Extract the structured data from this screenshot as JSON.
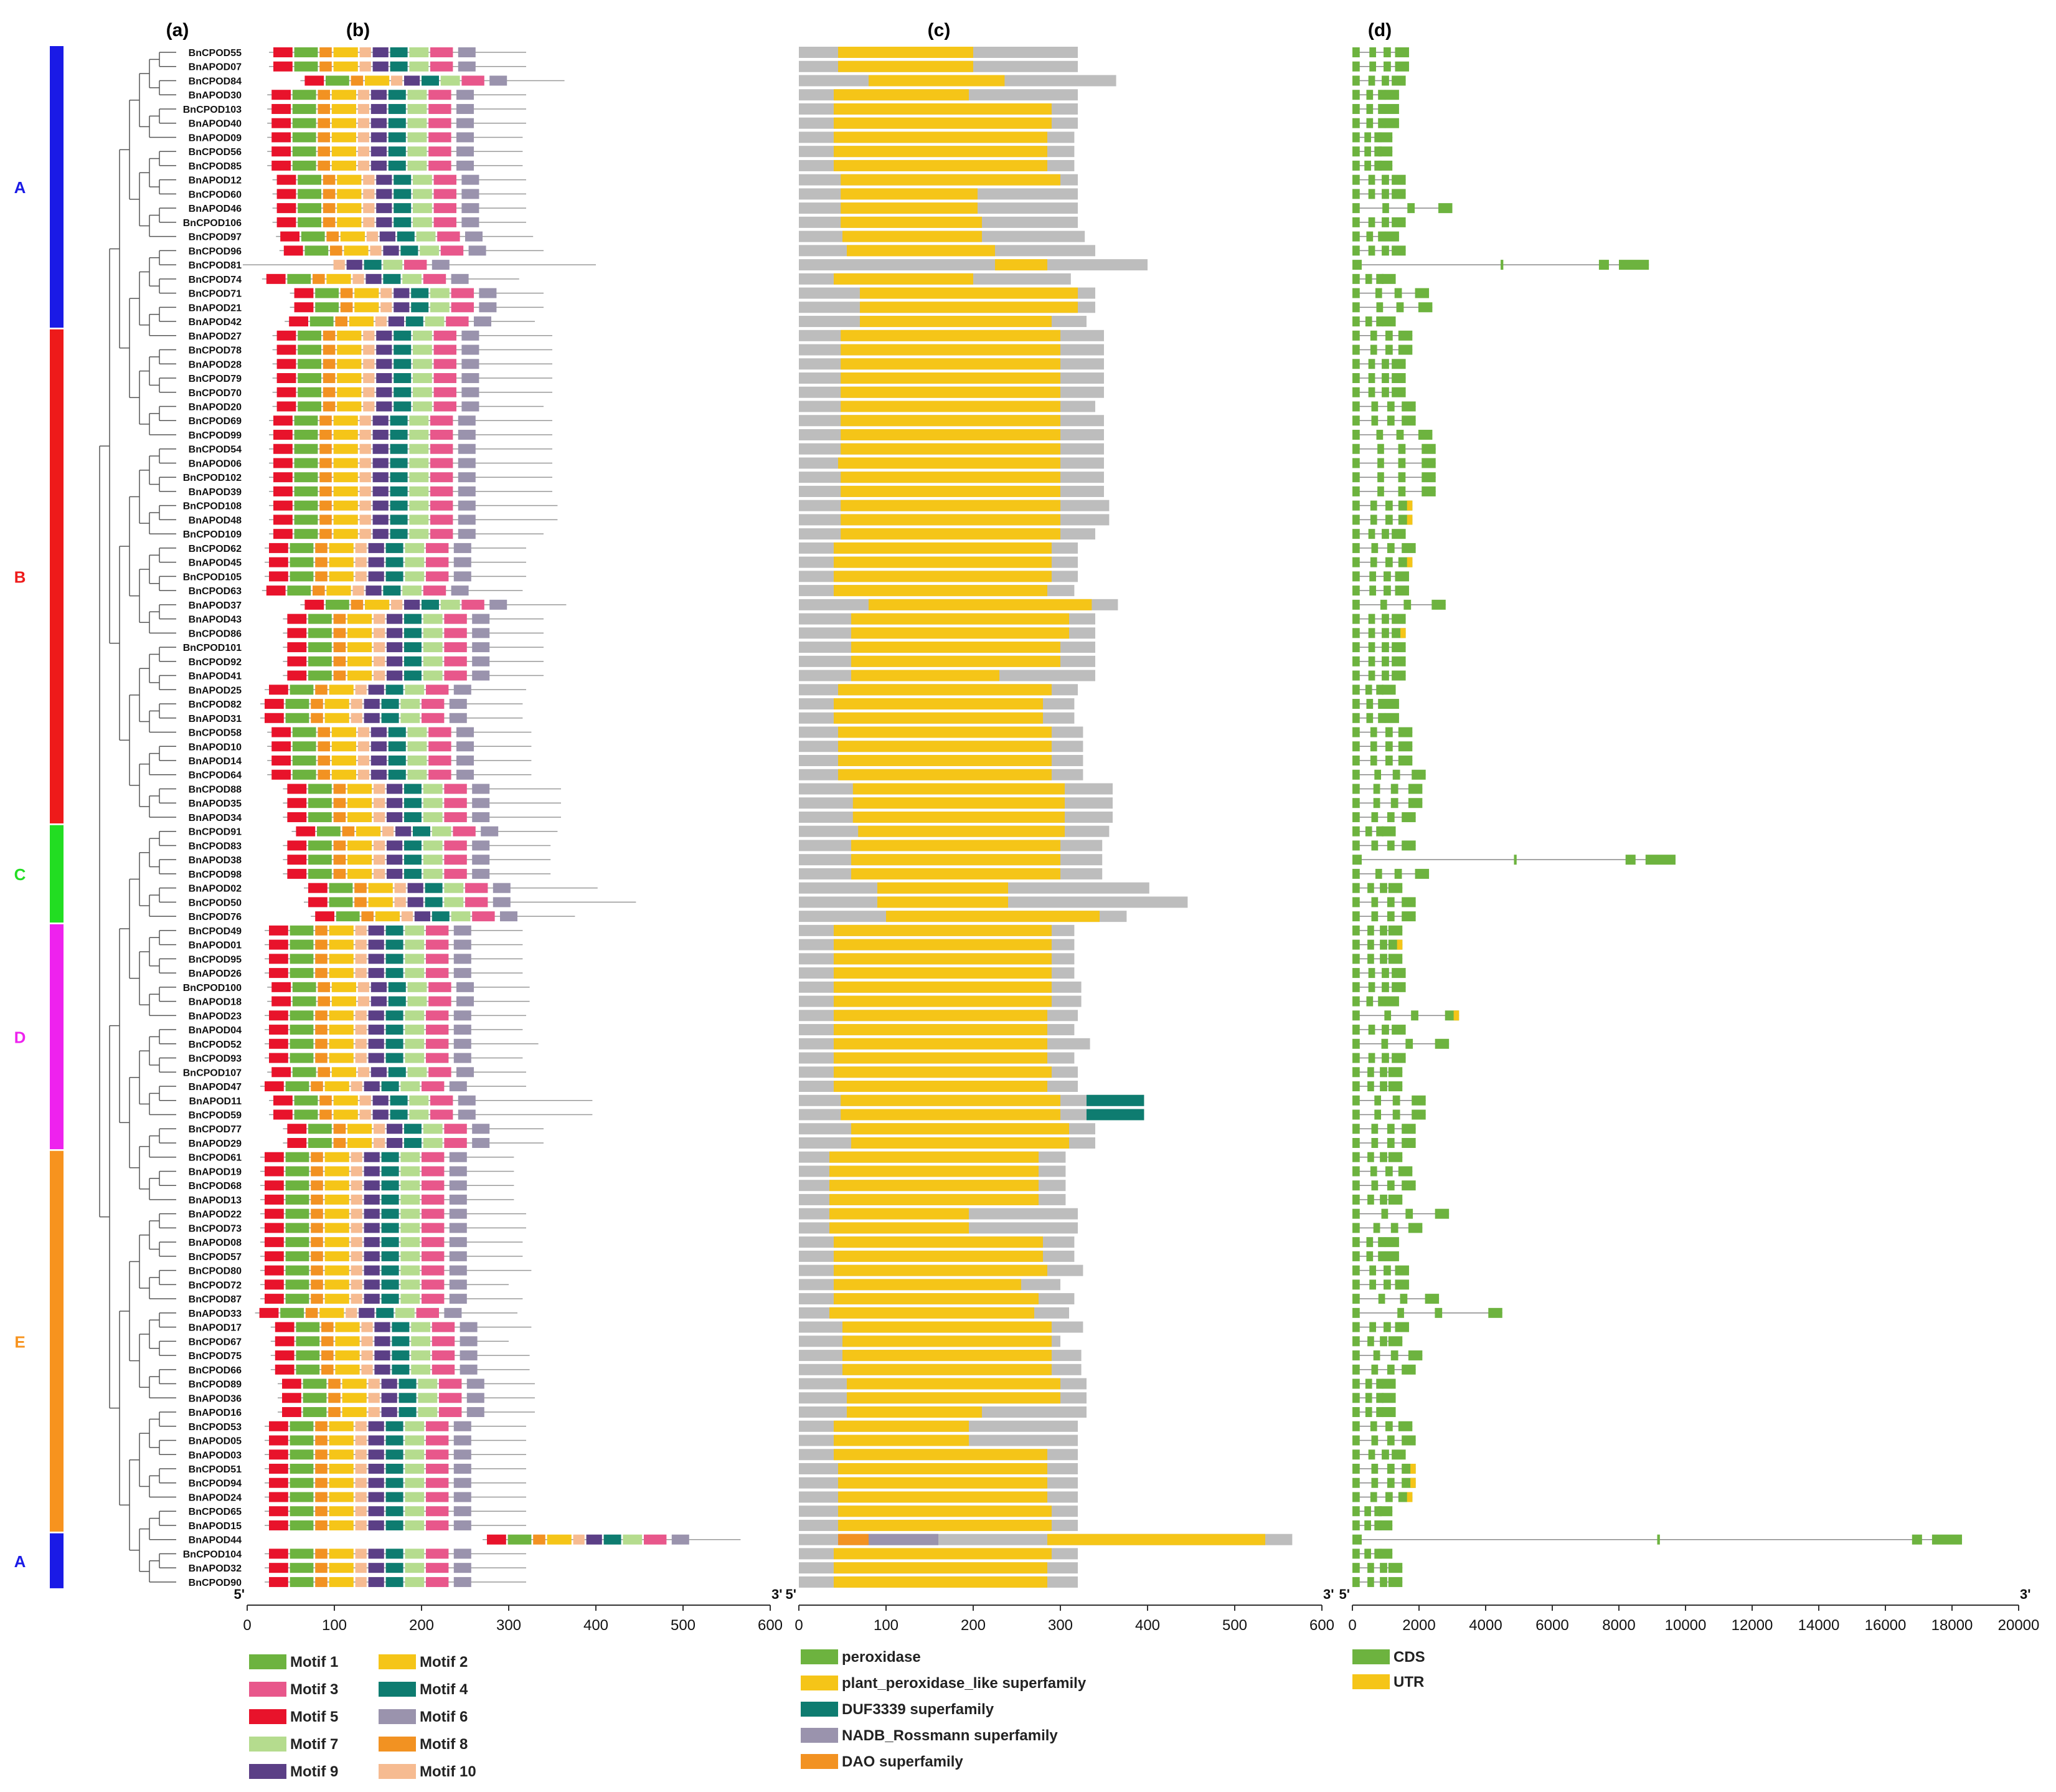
{
  "panels": [
    "(a)",
    "(b)",
    "(c)",
    "(d)"
  ],
  "genes": [
    "BnCPOD55",
    "BnAPOD07",
    "BnCPOD84",
    "BnAPOD30",
    "BnCPOD103",
    "BnAPOD40",
    "BnAPOD09",
    "BnCPOD56",
    "BnCPOD85",
    "BnAPOD12",
    "BnCPOD60",
    "BnAPOD46",
    "BnCPOD106",
    "BnCPOD97",
    "BnCPOD96",
    "BnCPOD81",
    "BnCPOD74",
    "BnCPOD71",
    "BnAPOD21",
    "BnAPOD42",
    "BnAPOD27",
    "BnCPOD78",
    "BnAPOD28",
    "BnCPOD79",
    "BnCPOD70",
    "BnAPOD20",
    "BnCPOD69",
    "BnCPOD99",
    "BnCPOD54",
    "BnAPOD06",
    "BnCPOD102",
    "BnAPOD39",
    "BnCPOD108",
    "BnAPOD48",
    "BnCPOD109",
    "BnCPOD62",
    "BnAPOD45",
    "BnCPOD105",
    "BnCPOD63",
    "BnAPOD37",
    "BnAPOD43",
    "BnCPOD86",
    "BnCPOD101",
    "BnCPOD92",
    "BnAPOD41",
    "BnAPOD25",
    "BnCPOD82",
    "BnAPOD31",
    "BnCPOD58",
    "BnAPOD10",
    "BnAPOD14",
    "BnCPOD64",
    "BnCPOD88",
    "BnAPOD35",
    "BnAPOD34",
    "BnCPOD91",
    "BnCPOD83",
    "BnAPOD38",
    "BnCPOD98",
    "BnAPOD02",
    "BnCPOD50",
    "BnCPOD76",
    "BnCPOD49",
    "BnAPOD01",
    "BnCPOD95",
    "BnAPOD26",
    "BnCPOD100",
    "BnAPOD18",
    "BnAPOD23",
    "BnAPOD04",
    "BnCPOD52",
    "BnCPOD93",
    "BnCPOD107",
    "BnAPOD47",
    "BnAPOD11",
    "BnCPOD59",
    "BnCPOD77",
    "BnAPOD29",
    "BnCPOD61",
    "BnAPOD19",
    "BnCPOD68",
    "BnAPOD13",
    "BnAPOD22",
    "BnCPOD73",
    "BnAPOD08",
    "BnCPOD57",
    "BnCPOD80",
    "BnCPOD72",
    "BnCPOD87",
    "BnAPOD33",
    "BnAPOD17",
    "BnCPOD67",
    "BnCPOD75",
    "BnCPOD66",
    "BnCPOD89",
    "BnAPOD36",
    "BnAPOD16",
    "BnCPOD53",
    "BnAPOD05",
    "BnAPOD03",
    "BnCPOD51",
    "BnCPOD94",
    "BnAPOD24",
    "BnCPOD65",
    "BnAPOD15",
    "BnAPOD44",
    "BnCPOD104",
    "BnAPOD32",
    "BnCPOD90"
  ],
  "groups": [
    {
      "label": "A",
      "color": "#1a1ae6",
      "start": 0,
      "end": 19
    },
    {
      "label": "B",
      "color": "#ee1a1a",
      "start": 20,
      "end": 54
    },
    {
      "label": "C",
      "color": "#22dd22",
      "start": 55,
      "end": 61
    },
    {
      "label": "D",
      "color": "#ee22ee",
      "start": 62,
      "end": 77
    },
    {
      "label": "E",
      "color": "#f7931e",
      "start": 78,
      "end": 104
    },
    {
      "label": "A",
      "color": "#1a1ae6",
      "start": 105,
      "end": 108
    }
  ],
  "axis_b": {
    "ticks": [
      "0",
      "100",
      "200",
      "300",
      "400",
      "500",
      "600"
    ],
    "start": "5'",
    "end": "3'"
  },
  "axis_c": {
    "ticks": [
      "0",
      "100",
      "200",
      "300",
      "400",
      "500",
      "600"
    ],
    "start": "5'",
    "end": "3'"
  },
  "axis_d": {
    "ticks": [
      "0",
      "2000",
      "4000",
      "6000",
      "8000",
      "10000",
      "12000",
      "14000",
      "16000",
      "18000",
      "20000"
    ],
    "start": "5'",
    "end": "3'"
  },
  "legend_motifs": [
    {
      "label": "Motif 1",
      "color": "#6db33f"
    },
    {
      "label": "Motif 2",
      "color": "#f5c518"
    },
    {
      "label": "Motif 3",
      "color": "#e8578b"
    },
    {
      "label": "Motif 4",
      "color": "#0e7c70"
    },
    {
      "label": "Motif 5",
      "color": "#e8132b"
    },
    {
      "label": "Motif 6",
      "color": "#9a93ad"
    },
    {
      "label": "Motif 7",
      "color": "#b5dc8e"
    },
    {
      "label": "Motif 8",
      "color": "#f29222"
    },
    {
      "label": "Motif 9",
      "color": "#5b3f86"
    },
    {
      "label": "Motif 10",
      "color": "#f6bb91"
    }
  ],
  "legend_domains": [
    {
      "label": "peroxidase",
      "color": "#6db33f"
    },
    {
      "label": "plant_peroxidase_like superfamily",
      "color": "#f5c518"
    },
    {
      "label": "DUF3339 superfamily",
      "color": "#0e7c70"
    },
    {
      "label": "NADB_Rossmann superfamily",
      "color": "#9a93ad"
    },
    {
      "label": "DAO superfamily",
      "color": "#f29222"
    }
  ],
  "legend_structure": [
    {
      "label": "CDS",
      "color": "#6db33f"
    },
    {
      "label": "UTR",
      "color": "#f5c518"
    }
  ]
}
